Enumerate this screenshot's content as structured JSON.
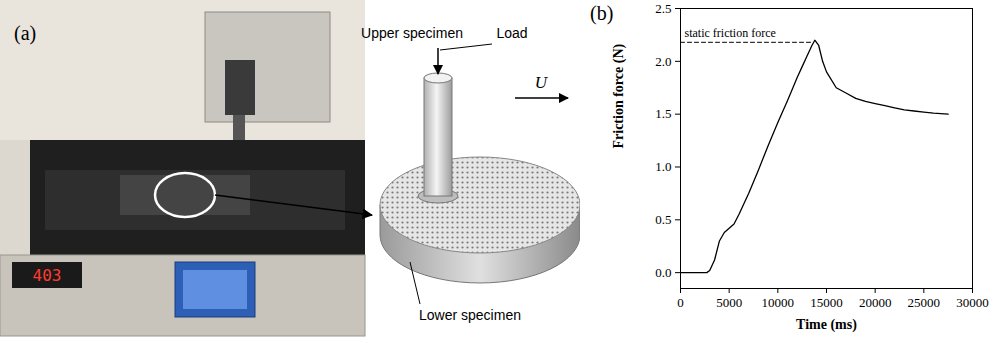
{
  "figure": {
    "panel_a": {
      "letter": "(a)",
      "display": "403",
      "labels": {
        "upper": "Upper specimen",
        "load": "Load",
        "velocity": "U",
        "lower": "Lower specimen"
      }
    },
    "panel_b": {
      "letter": "(b)"
    }
  },
  "chart_data": {
    "type": "line",
    "xlabel": "Time (ms)",
    "ylabel": "Friction force (N)",
    "x": [
      0,
      1000,
      2000,
      2700,
      3000,
      3500,
      4000,
      4500,
      5000,
      5500,
      6000,
      7000,
      8000,
      9000,
      10000,
      11000,
      12000,
      12500,
      13000,
      13500,
      13800,
      14200,
      14600,
      15000,
      16000,
      17000,
      18000,
      19000,
      20000,
      21000,
      22000,
      23000,
      24000,
      25000,
      26000,
      27500
    ],
    "values": [
      0,
      0,
      0,
      0,
      0.02,
      0.12,
      0.3,
      0.38,
      0.42,
      0.46,
      0.55,
      0.75,
      0.97,
      1.2,
      1.42,
      1.63,
      1.85,
      1.95,
      2.05,
      2.15,
      2.2,
      2.15,
      2.0,
      1.9,
      1.75,
      1.7,
      1.65,
      1.62,
      1.6,
      1.58,
      1.56,
      1.54,
      1.53,
      1.52,
      1.51,
      1.5
    ],
    "color": "#000000",
    "xlim": [
      0,
      30000
    ],
    "xticks": [
      0,
      5000,
      10000,
      15000,
      20000,
      25000,
      30000
    ],
    "ylim": [
      -0.15,
      2.5
    ],
    "yticks": [
      {
        "value": 0,
        "label": "0.0"
      },
      0.5,
      {
        "value": 1,
        "label": "1.0"
      },
      1.5,
      {
        "value": 2,
        "label": "2.0"
      },
      2.5
    ],
    "grid": false,
    "annotations": [
      {
        "text": "static friction force",
        "y": 2.18,
        "xlim": [
          0,
          13500
        ],
        "line_style": "dashed"
      }
    ]
  }
}
